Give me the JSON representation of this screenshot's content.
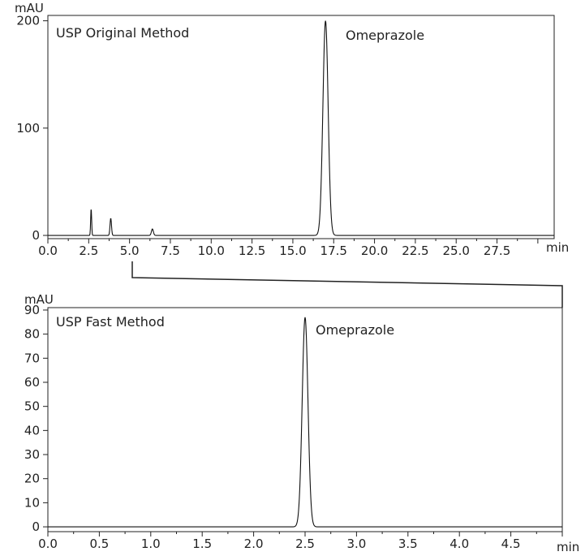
{
  "chart_data": [
    {
      "type": "line",
      "title": "USP Original Method",
      "xlabel": "min",
      "ylabel": "mAU",
      "xlim": [
        0,
        31
      ],
      "ylim": [
        -3,
        205
      ],
      "x_ticks": [
        0,
        2.5,
        5,
        7.5,
        10,
        12.5,
        15,
        17.5,
        20,
        22.5,
        25,
        27.5
      ],
      "x_tick_labels": [
        "0.0",
        "2.5",
        "5.0",
        "7.5",
        "10.0",
        "12.5",
        "15.0",
        "17.5",
        "20.0",
        "22.5",
        "25.0",
        "27.5"
      ],
      "y_ticks": [
        0,
        100,
        200
      ],
      "y_tick_labels": [
        "0",
        "100",
        "200"
      ],
      "grid": false,
      "annotations": [
        {
          "text": "Omeprazole",
          "x": 17.0,
          "y": 200
        }
      ],
      "series": [
        {
          "peaks": [
            {
              "rt": 2.65,
              "height": 25,
              "sigma": 0.03
            },
            {
              "rt": 3.85,
              "height": 16,
              "sigma": 0.045
            },
            {
              "rt": 6.4,
              "height": 6,
              "sigma": 0.06
            },
            {
              "rt": 17.0,
              "height": 200,
              "sigma": 0.16
            }
          ],
          "baseline": 0
        }
      ]
    },
    {
      "type": "line",
      "title": "USP Fast Method",
      "xlabel": "min",
      "ylabel": "mAU",
      "xlim": [
        0,
        5.0
      ],
      "ylim": [
        -2,
        91
      ],
      "x_ticks": [
        0,
        0.5,
        1.0,
        1.5,
        2.0,
        2.5,
        3.0,
        3.5,
        4.0,
        4.5
      ],
      "x_tick_labels": [
        "0.0",
        "0.5",
        "1.0",
        "1.5",
        "2.0",
        "2.5",
        "3.0",
        "3.5",
        "4.0",
        "4.5"
      ],
      "y_ticks": [
        0,
        10,
        20,
        30,
        40,
        50,
        60,
        70,
        80,
        90
      ],
      "y_tick_labels": [
        "0",
        "10",
        "20",
        "30",
        "40",
        "50",
        "60",
        "70",
        "80",
        "90"
      ],
      "grid": false,
      "annotations": [
        {
          "text": "Omeprazole",
          "x": 2.5,
          "y": 87
        }
      ],
      "series": [
        {
          "peaks": [
            {
              "rt": 2.5,
              "height": 87,
              "sigma": 0.028
            }
          ],
          "baseline": 0
        }
      ]
    }
  ]
}
